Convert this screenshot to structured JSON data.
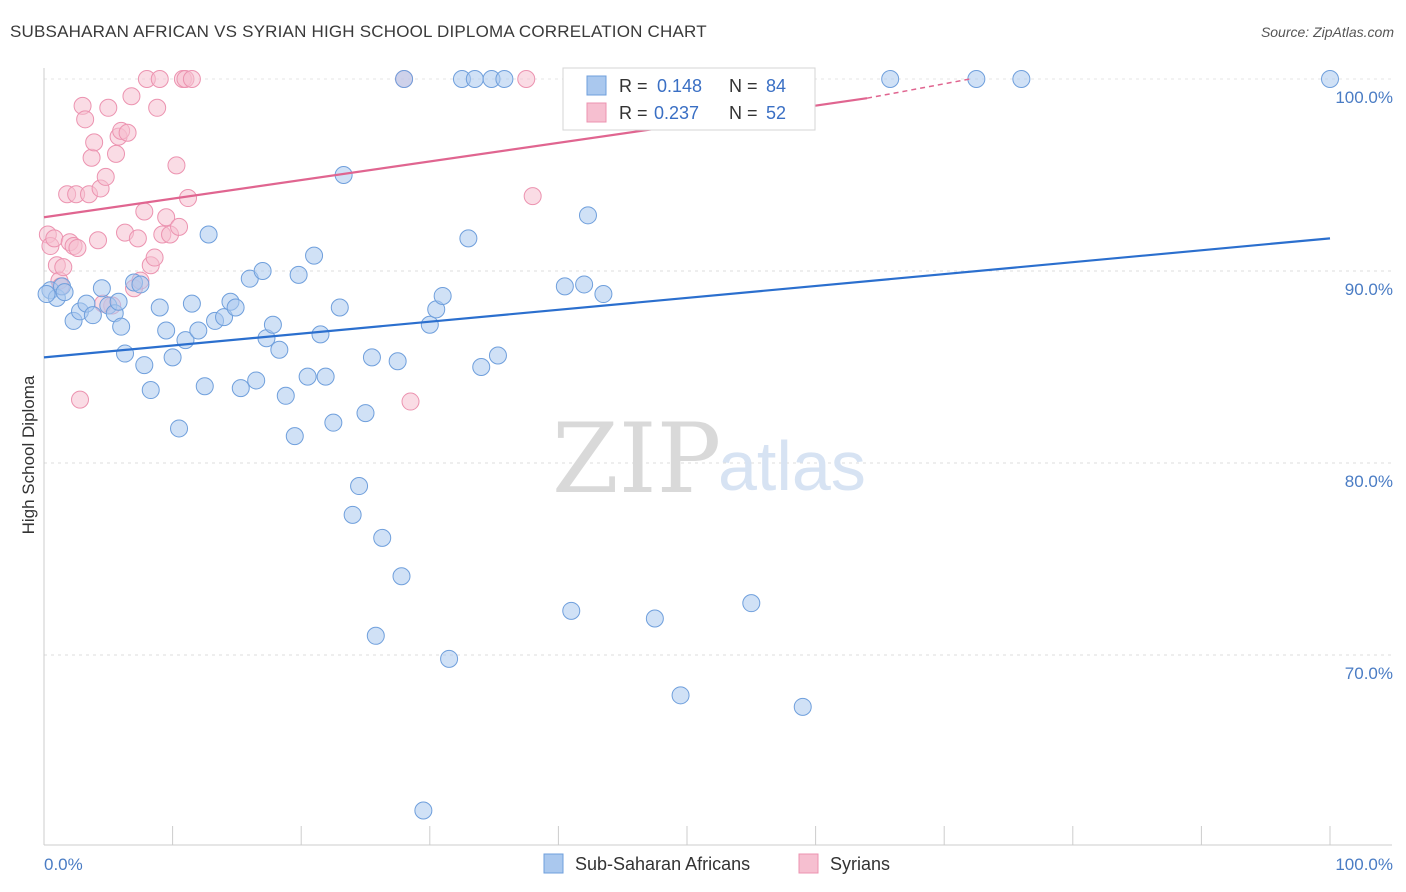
{
  "title": "SUBSAHARAN AFRICAN VS SYRIAN HIGH SCHOOL DIPLOMA CORRELATION CHART",
  "source": "Source: ZipAtlas.com",
  "watermark": {
    "zip": "ZIP",
    "atlas": "atlas"
  },
  "legend": {
    "r_label": "R =",
    "n_label": "N =",
    "entries": [
      {
        "r": "0.148",
        "n": "84"
      },
      {
        "r": "0.237",
        "n": "52"
      }
    ]
  },
  "colors": {
    "blue_fill": "#aac8ee",
    "blue_stroke": "#6f9fdc",
    "blue_line": "#2b6fce",
    "pink_fill": "#f6bfd0",
    "pink_stroke": "#ec93b0",
    "pink_line": "#e06590"
  },
  "chart_data": {
    "type": "scatter",
    "xlabel": "",
    "ylabel": "High School Diploma",
    "xlim": [
      0,
      100
    ],
    "ylim": [
      60,
      101.5
    ],
    "x_tick_labels": [
      "0.0%",
      "100.0%"
    ],
    "y_ticks": [
      70,
      80,
      90,
      100
    ],
    "y_tick_labels": [
      "70.0%",
      "80.0%",
      "90.0%",
      "100.0%"
    ],
    "grid": true,
    "legend_position": "top-center",
    "series": [
      {
        "name": "Sub-Saharan Africans",
        "color": "#aac8ee",
        "trend": {
          "x": [
            0,
            100
          ],
          "y": [
            85.5,
            91.7
          ]
        },
        "points": [
          [
            0.5,
            89.0
          ],
          [
            1.0,
            88.6
          ],
          [
            1.4,
            89.2
          ],
          [
            2.3,
            87.4
          ],
          [
            2.8,
            87.9
          ],
          [
            3.3,
            88.3
          ],
          [
            3.8,
            87.7
          ],
          [
            5.0,
            88.2
          ],
          [
            5.5,
            87.8
          ],
          [
            5.8,
            88.4
          ],
          [
            6.0,
            87.1
          ],
          [
            6.3,
            85.7
          ],
          [
            7.0,
            89.4
          ],
          [
            7.5,
            89.3
          ],
          [
            7.8,
            85.1
          ],
          [
            8.3,
            83.8
          ],
          [
            9.0,
            88.1
          ],
          [
            9.5,
            86.9
          ],
          [
            10.0,
            85.5
          ],
          [
            10.5,
            81.8
          ],
          [
            11.0,
            86.4
          ],
          [
            11.5,
            88.3
          ],
          [
            12.0,
            86.9
          ],
          [
            12.5,
            84.0
          ],
          [
            12.8,
            91.9
          ],
          [
            13.3,
            87.4
          ],
          [
            14.0,
            87.6
          ],
          [
            14.5,
            88.4
          ],
          [
            14.9,
            88.1
          ],
          [
            15.3,
            83.9
          ],
          [
            16.0,
            89.6
          ],
          [
            16.5,
            84.3
          ],
          [
            17.0,
            90.0
          ],
          [
            17.3,
            86.5
          ],
          [
            17.8,
            87.2
          ],
          [
            18.3,
            85.9
          ],
          [
            18.8,
            83.5
          ],
          [
            19.5,
            81.4
          ],
          [
            19.8,
            89.8
          ],
          [
            20.5,
            84.5
          ],
          [
            21.0,
            90.8
          ],
          [
            21.5,
            86.7
          ],
          [
            21.9,
            84.5
          ],
          [
            22.5,
            82.1
          ],
          [
            23.0,
            88.1
          ],
          [
            23.3,
            95.0
          ],
          [
            24.0,
            77.3
          ],
          [
            24.5,
            78.8
          ],
          [
            25.0,
            82.6
          ],
          [
            25.5,
            85.5
          ],
          [
            25.8,
            71.0
          ],
          [
            26.3,
            76.1
          ],
          [
            27.5,
            85.3
          ],
          [
            27.8,
            74.1
          ],
          [
            28.0,
            100.0
          ],
          [
            29.5,
            61.9
          ],
          [
            30.0,
            87.2
          ],
          [
            30.5,
            88.0
          ],
          [
            31.0,
            88.7
          ],
          [
            31.5,
            69.8
          ],
          [
            32.5,
            100.0
          ],
          [
            33.0,
            91.7
          ],
          [
            33.5,
            100.0
          ],
          [
            34.0,
            85.0
          ],
          [
            34.8,
            100.0
          ],
          [
            35.3,
            85.6
          ],
          [
            35.8,
            100.0
          ],
          [
            40.5,
            89.2
          ],
          [
            41.0,
            72.3
          ],
          [
            42.0,
            89.3
          ],
          [
            42.3,
            92.9
          ],
          [
            43.5,
            88.8
          ],
          [
            47.5,
            71.9
          ],
          [
            49.5,
            67.9
          ],
          [
            51.0,
            100.0
          ],
          [
            55.0,
            72.7
          ],
          [
            59.0,
            67.3
          ],
          [
            65.8,
            100.0
          ],
          [
            72.5,
            100.0
          ],
          [
            76.0,
            100.0
          ],
          [
            100.0,
            100.0
          ],
          [
            0.2,
            88.8
          ],
          [
            1.6,
            88.9
          ],
          [
            4.5,
            89.1
          ]
        ]
      },
      {
        "name": "Syrians",
        "color": "#f6bfd0",
        "trend": {
          "x": [
            0,
            64
          ],
          "y": [
            92.8,
            99.0
          ]
        },
        "trend_dashed": {
          "x": [
            64,
            72
          ],
          "y": [
            99.0,
            100.0
          ]
        },
        "points": [
          [
            0.3,
            91.9
          ],
          [
            0.5,
            91.3
          ],
          [
            0.8,
            91.7
          ],
          [
            1.0,
            90.3
          ],
          [
            1.2,
            89.5
          ],
          [
            1.5,
            90.2
          ],
          [
            1.8,
            94.0
          ],
          [
            2.0,
            91.5
          ],
          [
            2.3,
            91.3
          ],
          [
            2.5,
            94.0
          ],
          [
            2.8,
            83.3
          ],
          [
            3.0,
            98.6
          ],
          [
            3.2,
            97.9
          ],
          [
            3.5,
            94.0
          ],
          [
            3.7,
            95.9
          ],
          [
            3.9,
            96.7
          ],
          [
            4.2,
            91.6
          ],
          [
            4.4,
            94.3
          ],
          [
            4.8,
            94.9
          ],
          [
            5.0,
            98.5
          ],
          [
            5.3,
            88.2
          ],
          [
            5.6,
            96.1
          ],
          [
            5.8,
            97.0
          ],
          [
            6.0,
            97.3
          ],
          [
            6.3,
            92.0
          ],
          [
            6.5,
            97.2
          ],
          [
            6.8,
            99.1
          ],
          [
            7.0,
            89.1
          ],
          [
            7.3,
            91.7
          ],
          [
            7.5,
            89.5
          ],
          [
            7.8,
            93.1
          ],
          [
            8.0,
            100.0
          ],
          [
            8.3,
            90.3
          ],
          [
            8.6,
            90.7
          ],
          [
            8.8,
            98.5
          ],
          [
            9.0,
            100.0
          ],
          [
            9.2,
            91.9
          ],
          [
            9.5,
            92.8
          ],
          [
            9.8,
            91.9
          ],
          [
            10.3,
            95.5
          ],
          [
            10.5,
            92.3
          ],
          [
            10.8,
            100.0
          ],
          [
            11.0,
            100.0
          ],
          [
            11.2,
            93.8
          ],
          [
            11.5,
            100.0
          ],
          [
            28.0,
            100.0
          ],
          [
            28.5,
            83.2
          ],
          [
            37.5,
            100.0
          ],
          [
            38.0,
            93.9
          ],
          [
            1.3,
            89.2
          ],
          [
            2.6,
            91.2
          ],
          [
            4.6,
            88.3
          ]
        ]
      }
    ]
  },
  "bottom_legend": [
    "Sub-Saharan Africans",
    "Syrians"
  ]
}
